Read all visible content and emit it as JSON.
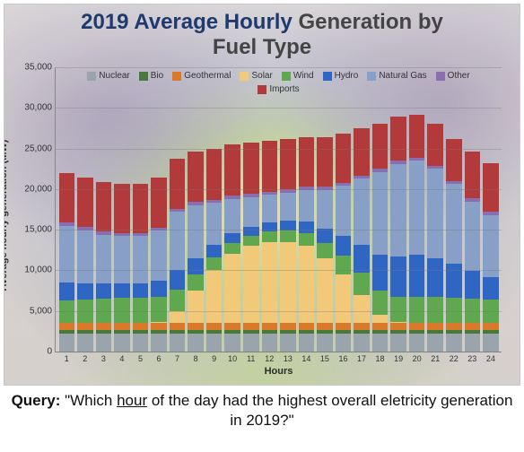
{
  "title": {
    "part1_dark": "2019 Average Hourly",
    "part2_gray": " Generation by",
    "line2_gray": "Fuel Type",
    "color_dark": "#1f3a6e",
    "color_gray": "#555555",
    "fontsize": 24
  },
  "chart": {
    "type": "stacked-bar",
    "xlabel": "Hours",
    "ylabel": "Average hourly generation (MW)",
    "label_fontsize": 11,
    "ylim": [
      0,
      35000
    ],
    "ytick_step": 5000,
    "yticks": [
      "0",
      "5,000",
      "10,000",
      "15,000",
      "20,000",
      "25,000",
      "30,000",
      "35,000"
    ],
    "xticks": [
      "1",
      "2",
      "3",
      "4",
      "5",
      "6",
      "7",
      "8",
      "9",
      "10",
      "11",
      "12",
      "13",
      "14",
      "15",
      "16",
      "17",
      "18",
      "19",
      "20",
      "21",
      "22",
      "23",
      "24"
    ],
    "grid_color": "#b7b7b7",
    "background_color": "#f2eee2",
    "legend_position": "top",
    "series": [
      {
        "key": "nuclear",
        "label": "Nuclear",
        "color": "#9aa4ad"
      },
      {
        "key": "bio",
        "label": "Bio",
        "color": "#467a3a"
      },
      {
        "key": "geothermal",
        "label": "Geothermal",
        "color": "#d97a2b"
      },
      {
        "key": "solar",
        "label": "Solar",
        "color": "#f2c879"
      },
      {
        "key": "wind",
        "label": "Wind",
        "color": "#5fa84f"
      },
      {
        "key": "hydro",
        "label": "Hydro",
        "color": "#2f66c4"
      },
      {
        "key": "natural_gas",
        "label": "Natural Gas",
        "color": "#88a0c8"
      },
      {
        "key": "other",
        "label": "Other",
        "color": "#8a6fb0"
      },
      {
        "key": "imports",
        "label": "Imports",
        "color": "#b23a3a"
      }
    ],
    "data": {
      "nuclear": [
        2200,
        2200,
        2200,
        2200,
        2200,
        2200,
        2200,
        2200,
        2200,
        2200,
        2200,
        2200,
        2200,
        2200,
        2200,
        2200,
        2200,
        2200,
        2200,
        2200,
        2200,
        2200,
        2200,
        2200
      ],
      "bio": [
        400,
        400,
        400,
        400,
        400,
        400,
        400,
        400,
        400,
        400,
        400,
        400,
        400,
        400,
        400,
        400,
        400,
        400,
        400,
        400,
        400,
        400,
        400,
        400
      ],
      "geothermal": [
        900,
        900,
        900,
        900,
        900,
        900,
        900,
        900,
        900,
        900,
        900,
        900,
        900,
        900,
        900,
        900,
        900,
        900,
        900,
        900,
        900,
        900,
        900,
        900
      ],
      "solar": [
        0,
        0,
        0,
        0,
        0,
        200,
        1500,
        4000,
        6500,
        8500,
        9500,
        10000,
        10000,
        9500,
        8000,
        6000,
        3500,
        1000,
        100,
        0,
        0,
        0,
        0,
        0
      ],
      "wind": [
        2800,
        2900,
        3000,
        3100,
        3100,
        3000,
        2600,
        2000,
        1600,
        1400,
        1300,
        1300,
        1400,
        1600,
        1900,
        2300,
        2700,
        3000,
        3100,
        3200,
        3200,
        3100,
        3000,
        2900
      ],
      "hydro": [
        2200,
        2000,
        1900,
        1800,
        1800,
        2000,
        2400,
        2000,
        1500,
        1200,
        1100,
        1100,
        1200,
        1400,
        1700,
        2400,
        3400,
        4400,
        5000,
        5200,
        4800,
        4200,
        3400,
        2800
      ],
      "natural_gas": [
        7000,
        6500,
        6000,
        5800,
        5800,
        6200,
        7200,
        6500,
        5200,
        4200,
        3600,
        3400,
        3500,
        3900,
        4800,
        6200,
        8200,
        10200,
        11400,
        11600,
        11000,
        9800,
        8600,
        7600
      ],
      "other": [
        400,
        400,
        400,
        400,
        400,
        400,
        400,
        400,
        400,
        400,
        400,
        400,
        400,
        400,
        400,
        400,
        400,
        400,
        400,
        400,
        400,
        400,
        400,
        400
      ],
      "imports": [
        6100,
        6100,
        6100,
        6100,
        6100,
        6100,
        6100,
        6200,
        6300,
        6300,
        6300,
        6300,
        6200,
        6100,
        6100,
        6000,
        5800,
        5600,
        5400,
        5300,
        5200,
        5200,
        5700,
        6000
      ]
    },
    "bar_gap": 3
  },
  "query": {
    "prefix": "Query:",
    "text_before": " \"Which ",
    "underlined": "hour",
    "text_after": " of the day had the highest overall eletricity generation in 2019?\""
  },
  "heatmap_overlay": {
    "note": "purple-blue vignette + yellow-green central blobs",
    "colors": [
      "#6b5aa0",
      "#a7d17a",
      "#f6e79a",
      "#3f4a8a"
    ]
  }
}
